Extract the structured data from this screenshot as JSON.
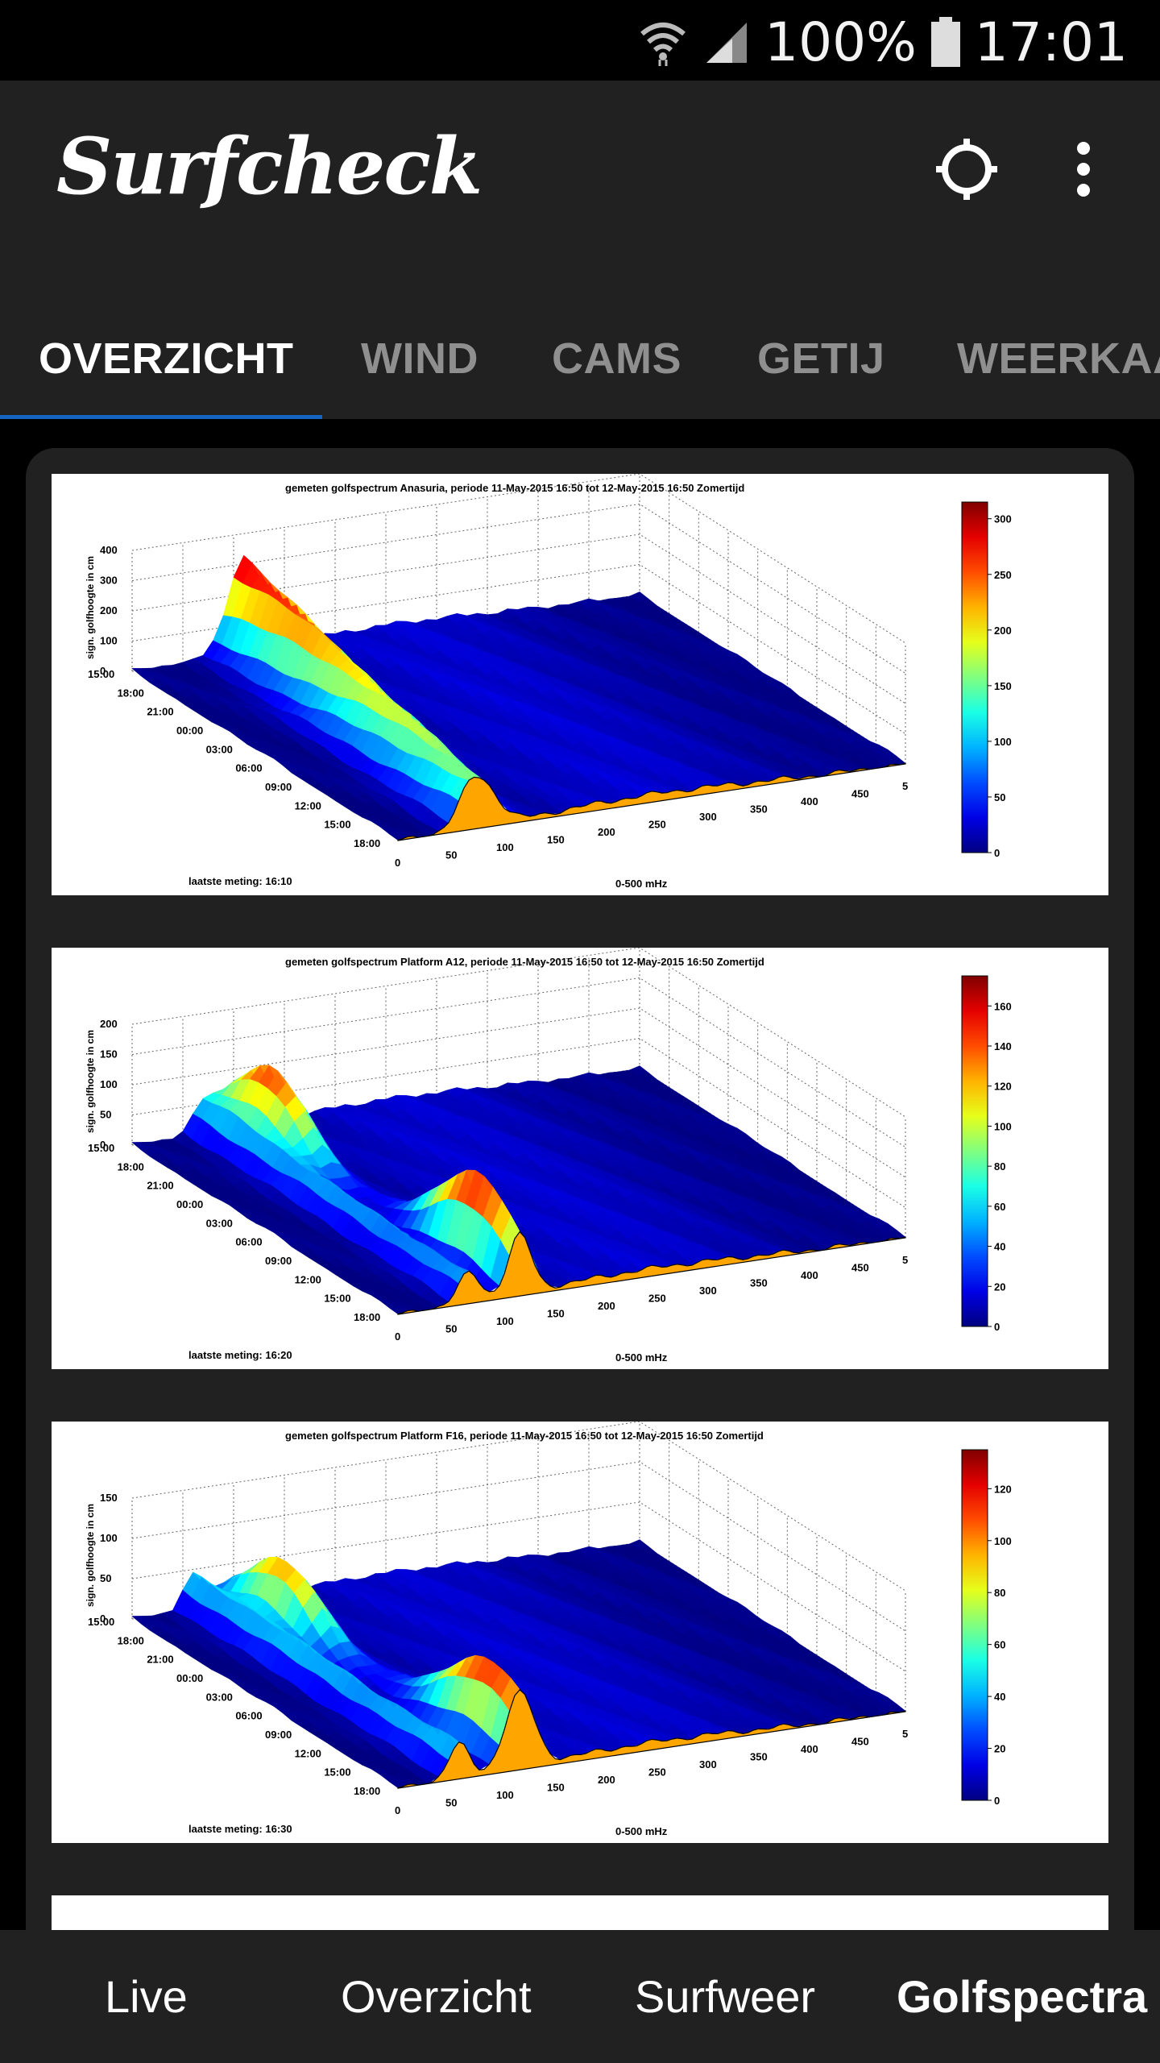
{
  "status_bar": {
    "battery": "100%",
    "time": "17:01"
  },
  "app_bar": {
    "title": "Surfcheck"
  },
  "tabs": [
    {
      "label": "OVERZICHT",
      "active": true
    },
    {
      "label": "WIND",
      "active": false
    },
    {
      "label": "CAMS",
      "active": false
    },
    {
      "label": "GETIJ",
      "active": false
    },
    {
      "label": "WEERKAA",
      "active": false
    }
  ],
  "spectra": [
    {
      "title": "gemeten golfspectrum Anasuria, periode 11-May-2015 16:50 tot 12-May-2015 16:50 Zomertijd",
      "zlabel": "sign. golfhoogte in cm",
      "zticks": [
        "400",
        "300",
        "200",
        "100",
        "0"
      ],
      "time_ticks": [
        "15:00",
        "18:00",
        "21:00",
        "00:00",
        "03:00",
        "06:00",
        "09:00",
        "12:00",
        "15:00",
        "18:00"
      ],
      "freq_ticks": [
        "0",
        "50",
        "100",
        "150",
        "200",
        "250",
        "300",
        "350",
        "400",
        "450",
        "5"
      ],
      "xlabel": "0-500 mHz",
      "last_measurement": "laatste meting: 16:10",
      "colorbar_ticks": [
        "300",
        "250",
        "200",
        "150",
        "100",
        "50",
        "0"
      ],
      "colorbar_max": 315,
      "peak_cm": 315,
      "peak_freq_mHz": 110
    },
    {
      "title": "gemeten golfspectrum Platform A12, periode 11-May-2015 16:50 tot 12-May-2015 16:50 Zomertijd",
      "zlabel": "sign. golfhoogte in cm",
      "zticks": [
        "200",
        "150",
        "100",
        "50",
        "0"
      ],
      "time_ticks": [
        "15:00",
        "18:00",
        "21:00",
        "00:00",
        "03:00",
        "06:00",
        "09:00",
        "12:00",
        "15:00",
        "18:00"
      ],
      "freq_ticks": [
        "0",
        "50",
        "100",
        "150",
        "200",
        "250",
        "300",
        "350",
        "400",
        "450",
        "5"
      ],
      "xlabel": "0-500 mHz",
      "last_measurement": "laatste meting: 16:20",
      "colorbar_ticks": [
        "160",
        "140",
        "120",
        "100",
        "80",
        "60",
        "40",
        "20",
        "0"
      ],
      "colorbar_max": 175,
      "peak_cm": 170,
      "peak_freq_mHz": 120
    },
    {
      "title": "gemeten golfspectrum Platform F16, periode 11-May-2015 16:50 tot 12-May-2015 16:50 Zomertijd",
      "zlabel": "sign. golfhoogte in cm",
      "zticks": [
        "150",
        "100",
        "50",
        "0"
      ],
      "time_ticks": [
        "15:00",
        "18:00",
        "21:00",
        "00:00",
        "03:00",
        "06:00",
        "09:00",
        "12:00",
        "15:00",
        "18:00"
      ],
      "freq_ticks": [
        "0",
        "50",
        "100",
        "150",
        "200",
        "250",
        "300",
        "350",
        "400",
        "450",
        "5"
      ],
      "xlabel": "0-500 mHz",
      "last_measurement": "laatste meting: 16:30",
      "colorbar_ticks": [
        "120",
        "100",
        "80",
        "60",
        "40",
        "20",
        "0"
      ],
      "colorbar_max": 135,
      "peak_cm": 130,
      "peak_freq_mHz": 120
    }
  ],
  "bottom_nav": [
    {
      "label": "Live",
      "active": false
    },
    {
      "label": "Overzicht",
      "active": false
    },
    {
      "label": "Surfweer",
      "active": false
    },
    {
      "label": "Golfspectra",
      "active": true
    }
  ]
}
